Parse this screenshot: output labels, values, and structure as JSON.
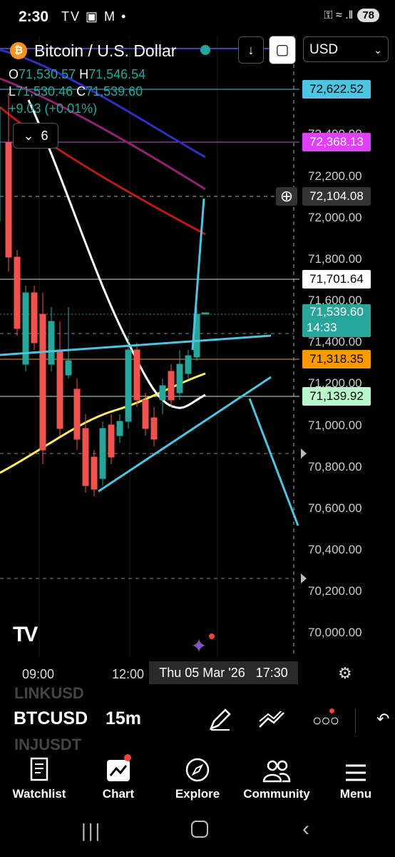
{
  "status_bar": {
    "time": "2:30",
    "icons": "TV ▣ M •",
    "right": "⚿ ≈ .‖",
    "battery": "78"
  },
  "header": {
    "symbol_title": "Bitcoin / U.S. Dollar",
    "currency": "USD",
    "coin_glyph": "₿"
  },
  "ohlc": {
    "o_label": "O",
    "o": "71,530.57",
    "h_label": "H",
    "h": "71,546.54",
    "l_label": "L",
    "l": "71,530.46",
    "c_label": "C",
    "c": "71,539.60",
    "change": "+9.03 (+0.01%)"
  },
  "indicators_count": "6",
  "price_scale": [
    "72,400.00",
    "72,200.00",
    "72,000.00",
    "71,800.00",
    "71,600.00",
    "71,400.00",
    "71,200.00",
    "71,000.00",
    "70,800.00",
    "70,600.00",
    "70,400.00",
    "70,200.00",
    "70,000.00"
  ],
  "price_tags": {
    "cyan": "72,622.52",
    "magenta": "72,368.13",
    "crosshair": "72,104.08",
    "white": "71,701.64",
    "current": "71,539.60",
    "countdown": "14:33",
    "orange": "71,318.35",
    "green": "71,139.92"
  },
  "time_axis": {
    "t1": "09:00",
    "t2": "12:00",
    "crosshair_time": "Thu 05 Mar '26",
    "crosshair_clock": "17:30"
  },
  "watchlist_strip": {
    "prev": "LINKUSD",
    "current": "BTCUSD",
    "next": "INJUSDT",
    "interval": "15m"
  },
  "tabs": [
    {
      "label": "Watchlist"
    },
    {
      "label": "Chart"
    },
    {
      "label": "Explore"
    },
    {
      "label": "Community"
    },
    {
      "label": "Menu"
    }
  ],
  "colors": {
    "up": "#26a69a",
    "down": "#ef5350",
    "accent_cyan": "#4dc4e0",
    "magenta": "#e040fb",
    "orange": "#ff9800",
    "green_tag": "#b9f6ca"
  }
}
